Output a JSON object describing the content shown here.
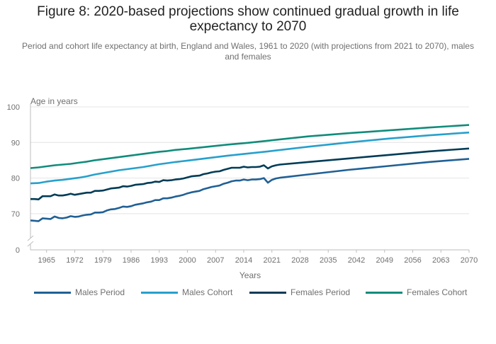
{
  "header": {
    "title": "Figure 8: 2020-based projections show continued gradual growth in life expectancy to 2070",
    "subtitle": "Period and cohort life expectancy at birth, England and Wales, 1961 to 2020 (with projections from 2021 to 2070), males and females"
  },
  "colors": {
    "males_period": "#206095",
    "males_cohort": "#27A0CC",
    "females_period": "#003C57",
    "females_cohort": "#118C7B",
    "grid": "#e4e4e4",
    "axis": "#bebebe"
  },
  "chart_data": {
    "type": "line",
    "ylabel": "Age in years",
    "xlabel": "Years",
    "xlim": [
      1961,
      2070
    ],
    "ylim": [
      0,
      100
    ],
    "axis_break": "between 0 and 65",
    "x_ticks": [
      "1965",
      "1972",
      "1979",
      "1986",
      "1993",
      "2000",
      "2007",
      "2014",
      "2021",
      "2028",
      "2035",
      "2042",
      "2049",
      "2056",
      "2063",
      "2070"
    ],
    "y_ticks": [
      "0",
      "70",
      "80",
      "90",
      "100"
    ],
    "grid": true,
    "legend_position": "bottom",
    "series": [
      {
        "name": "Males Period",
        "key": "males_period",
        "points": [
          [
            1961,
            68.1
          ],
          [
            1962,
            68.0
          ],
          [
            1963,
            67.9
          ],
          [
            1964,
            68.7
          ],
          [
            1965,
            68.6
          ],
          [
            1966,
            68.5
          ],
          [
            1967,
            69.2
          ],
          [
            1968,
            68.8
          ],
          [
            1969,
            68.7
          ],
          [
            1970,
            68.9
          ],
          [
            1971,
            69.3
          ],
          [
            1972,
            69.1
          ],
          [
            1973,
            69.2
          ],
          [
            1974,
            69.5
          ],
          [
            1975,
            69.7
          ],
          [
            1976,
            69.8
          ],
          [
            1977,
            70.3
          ],
          [
            1978,
            70.3
          ],
          [
            1979,
            70.4
          ],
          [
            1980,
            70.9
          ],
          [
            1981,
            71.2
          ],
          [
            1982,
            71.3
          ],
          [
            1983,
            71.6
          ],
          [
            1984,
            72.0
          ],
          [
            1985,
            71.9
          ],
          [
            1986,
            72.1
          ],
          [
            1987,
            72.5
          ],
          [
            1988,
            72.7
          ],
          [
            1989,
            72.9
          ],
          [
            1990,
            73.2
          ],
          [
            1991,
            73.4
          ],
          [
            1992,
            73.8
          ],
          [
            1993,
            73.8
          ],
          [
            1994,
            74.3
          ],
          [
            1995,
            74.3
          ],
          [
            1996,
            74.5
          ],
          [
            1997,
            74.8
          ],
          [
            1998,
            75.0
          ],
          [
            1999,
            75.3
          ],
          [
            2000,
            75.7
          ],
          [
            2001,
            76.0
          ],
          [
            2002,
            76.2
          ],
          [
            2003,
            76.4
          ],
          [
            2004,
            76.9
          ],
          [
            2005,
            77.2
          ],
          [
            2006,
            77.5
          ],
          [
            2007,
            77.7
          ],
          [
            2008,
            77.9
          ],
          [
            2009,
            78.4
          ],
          [
            2010,
            78.7
          ],
          [
            2011,
            79.1
          ],
          [
            2012,
            79.3
          ],
          [
            2013,
            79.3
          ],
          [
            2014,
            79.6
          ],
          [
            2015,
            79.4
          ],
          [
            2016,
            79.6
          ],
          [
            2017,
            79.6
          ],
          [
            2018,
            79.7
          ],
          [
            2019,
            80.0
          ],
          [
            2020,
            78.7
          ],
          [
            2021,
            79.5
          ],
          [
            2022,
            79.9
          ],
          [
            2023,
            80.1
          ],
          [
            2030,
            81.0
          ],
          [
            2040,
            82.3
          ],
          [
            2050,
            83.4
          ],
          [
            2060,
            84.5
          ],
          [
            2070,
            85.4
          ]
        ]
      },
      {
        "name": "Males Cohort",
        "key": "males_cohort",
        "points": [
          [
            1961,
            78.5
          ],
          [
            1963,
            78.6
          ],
          [
            1965,
            79.0
          ],
          [
            1967,
            79.3
          ],
          [
            1969,
            79.5
          ],
          [
            1971,
            79.8
          ],
          [
            1973,
            80.1
          ],
          [
            1975,
            80.5
          ],
          [
            1977,
            81.0
          ],
          [
            1979,
            81.4
          ],
          [
            1981,
            81.8
          ],
          [
            1983,
            82.2
          ],
          [
            1985,
            82.5
          ],
          [
            1987,
            82.8
          ],
          [
            1989,
            83.1
          ],
          [
            1991,
            83.5
          ],
          [
            1993,
            83.9
          ],
          [
            1995,
            84.2
          ],
          [
            1997,
            84.5
          ],
          [
            2000,
            84.9
          ],
          [
            2005,
            85.6
          ],
          [
            2010,
            86.3
          ],
          [
            2015,
            86.9
          ],
          [
            2020,
            87.5
          ],
          [
            2030,
            88.8
          ],
          [
            2040,
            90.0
          ],
          [
            2050,
            91.1
          ],
          [
            2060,
            92.0
          ],
          [
            2070,
            92.8
          ]
        ]
      },
      {
        "name": "Females Period",
        "key": "females_period",
        "points": [
          [
            1961,
            74.1
          ],
          [
            1962,
            74.1
          ],
          [
            1963,
            74.0
          ],
          [
            1964,
            74.9
          ],
          [
            1965,
            74.9
          ],
          [
            1966,
            74.9
          ],
          [
            1967,
            75.4
          ],
          [
            1968,
            75.1
          ],
          [
            1969,
            75.1
          ],
          [
            1970,
            75.3
          ],
          [
            1971,
            75.6
          ],
          [
            1972,
            75.3
          ],
          [
            1973,
            75.5
          ],
          [
            1974,
            75.7
          ],
          [
            1975,
            75.9
          ],
          [
            1976,
            75.9
          ],
          [
            1977,
            76.4
          ],
          [
            1978,
            76.4
          ],
          [
            1979,
            76.5
          ],
          [
            1980,
            76.8
          ],
          [
            1981,
            77.1
          ],
          [
            1982,
            77.2
          ],
          [
            1983,
            77.3
          ],
          [
            1984,
            77.7
          ],
          [
            1985,
            77.6
          ],
          [
            1986,
            77.8
          ],
          [
            1987,
            78.1
          ],
          [
            1988,
            78.2
          ],
          [
            1989,
            78.3
          ],
          [
            1990,
            78.6
          ],
          [
            1991,
            78.7
          ],
          [
            1992,
            79.0
          ],
          [
            1993,
            78.9
          ],
          [
            1994,
            79.4
          ],
          [
            1995,
            79.3
          ],
          [
            1996,
            79.4
          ],
          [
            1997,
            79.6
          ],
          [
            1998,
            79.7
          ],
          [
            1999,
            79.9
          ],
          [
            2000,
            80.2
          ],
          [
            2001,
            80.5
          ],
          [
            2002,
            80.6
          ],
          [
            2003,
            80.7
          ],
          [
            2004,
            81.1
          ],
          [
            2005,
            81.3
          ],
          [
            2006,
            81.6
          ],
          [
            2007,
            81.8
          ],
          [
            2008,
            81.9
          ],
          [
            2009,
            82.3
          ],
          [
            2010,
            82.6
          ],
          [
            2011,
            82.9
          ],
          [
            2012,
            82.9
          ],
          [
            2013,
            82.9
          ],
          [
            2014,
            83.2
          ],
          [
            2015,
            83.0
          ],
          [
            2016,
            83.1
          ],
          [
            2017,
            83.1
          ],
          [
            2018,
            83.2
          ],
          [
            2019,
            83.6
          ],
          [
            2020,
            82.7
          ],
          [
            2021,
            83.3
          ],
          [
            2022,
            83.6
          ],
          [
            2023,
            83.8
          ],
          [
            2030,
            84.5
          ],
          [
            2040,
            85.5
          ],
          [
            2050,
            86.5
          ],
          [
            2060,
            87.5
          ],
          [
            2070,
            88.3
          ]
        ]
      },
      {
        "name": "Females Cohort",
        "key": "females_cohort",
        "points": [
          [
            1961,
            82.8
          ],
          [
            1963,
            83.0
          ],
          [
            1965,
            83.3
          ],
          [
            1967,
            83.6
          ],
          [
            1969,
            83.8
          ],
          [
            1971,
            84.0
          ],
          [
            1973,
            84.3
          ],
          [
            1975,
            84.6
          ],
          [
            1977,
            85.0
          ],
          [
            1979,
            85.3
          ],
          [
            1981,
            85.6
          ],
          [
            1983,
            85.9
          ],
          [
            1985,
            86.2
          ],
          [
            1987,
            86.5
          ],
          [
            1989,
            86.8
          ],
          [
            1991,
            87.1
          ],
          [
            1993,
            87.4
          ],
          [
            1995,
            87.6
          ],
          [
            1997,
            87.9
          ],
          [
            2000,
            88.2
          ],
          [
            2005,
            88.8
          ],
          [
            2010,
            89.4
          ],
          [
            2015,
            89.9
          ],
          [
            2020,
            90.5
          ],
          [
            2030,
            91.7
          ],
          [
            2040,
            92.6
          ],
          [
            2050,
            93.4
          ],
          [
            2060,
            94.2
          ],
          [
            2070,
            94.9
          ]
        ]
      }
    ]
  }
}
